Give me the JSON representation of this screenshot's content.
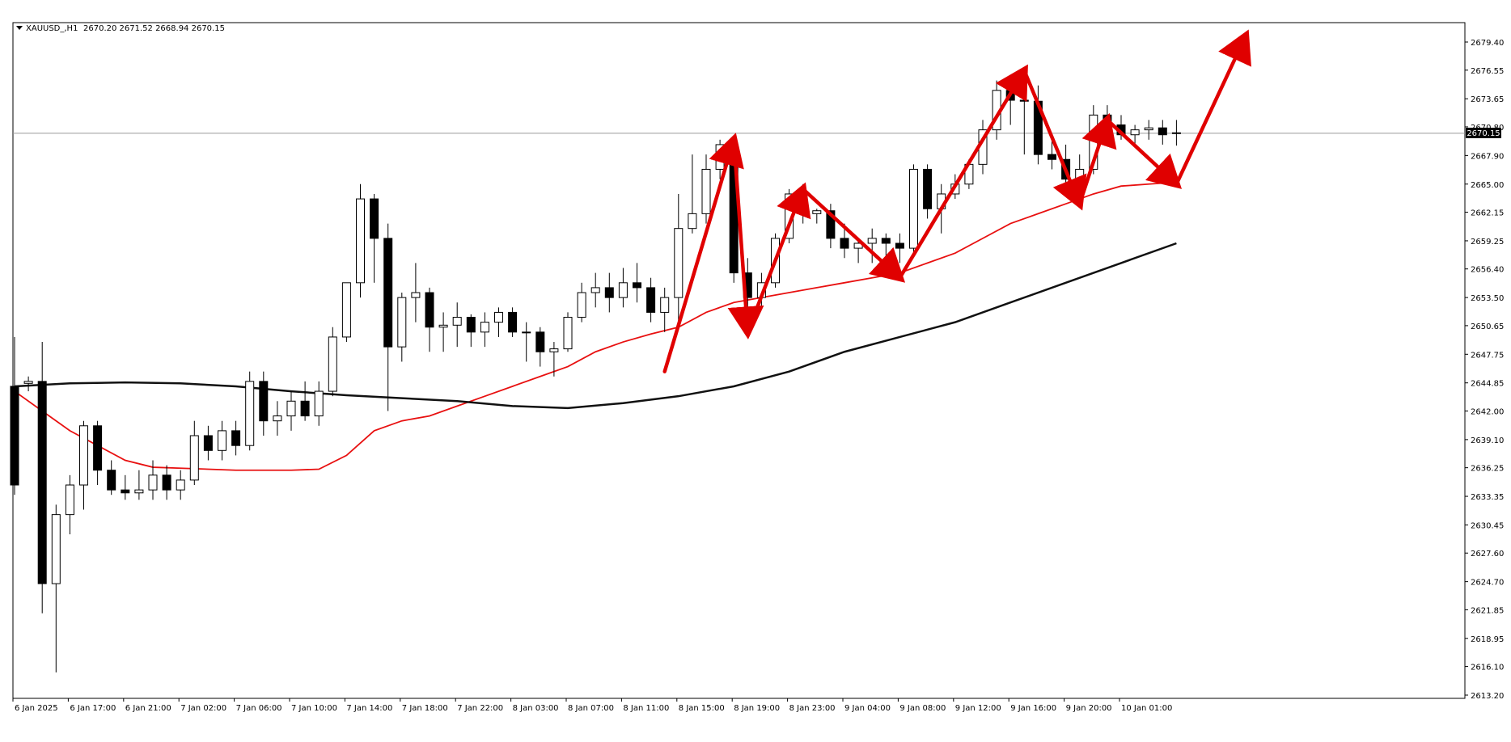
{
  "header": {
    "symbol": "XAUUSD_,H1",
    "ohlc": "2670.20 2671.52 2668.94 2670.15",
    "dropdown_icon": "triangle-down-icon"
  },
  "price_label": "2670.15",
  "chart_data": {
    "type": "candlestick",
    "ylim": [
      2613.2,
      2682.0
    ],
    "y_ticks": [
      "2679.40",
      "2676.55",
      "2673.65",
      "2670.80",
      "2667.90",
      "2665.00",
      "2662.15",
      "2659.25",
      "2656.40",
      "2653.50",
      "2650.65",
      "2647.75",
      "2644.85",
      "2642.00",
      "2639.10",
      "2636.25",
      "2633.35",
      "2630.45",
      "2627.60",
      "2624.70",
      "2621.85",
      "2618.95",
      "2616.10",
      "2613.20"
    ],
    "x_labels": [
      "6 Jan 2025",
      "6 Jan 17:00",
      "6 Jan 21:00",
      "7 Jan 02:00",
      "7 Jan 06:00",
      "7 Jan 10:00",
      "7 Jan 14:00",
      "7 Jan 18:00",
      "7 Jan 22:00",
      "8 Jan 03:00",
      "8 Jan 07:00",
      "8 Jan 11:00",
      "8 Jan 15:00",
      "8 Jan 19:00",
      "8 Jan 23:00",
      "9 Jan 04:00",
      "9 Jan 08:00",
      "9 Jan 12:00",
      "9 Jan 16:00",
      "9 Jan 20:00",
      "10 Jan 01:00"
    ],
    "current_price": 2670.15,
    "candles": [
      [
        2644.5,
        2649.5,
        2633.5,
        2634.5
      ],
      [
        2644.8,
        2645.5,
        2644.0,
        2645.0
      ],
      [
        2645.0,
        2649.0,
        2621.5,
        2624.5
      ],
      [
        2624.5,
        2632.5,
        2615.5,
        2631.5
      ],
      [
        2631.5,
        2635.5,
        2629.5,
        2634.5
      ],
      [
        2634.5,
        2641.0,
        2632.0,
        2640.5
      ],
      [
        2640.5,
        2641.0,
        2634.5,
        2636.0
      ],
      [
        2636.0,
        2637.0,
        2633.5,
        2634.0
      ],
      [
        2634.0,
        2635.5,
        2633.0,
        2633.7
      ],
      [
        2633.7,
        2636.0,
        2633.0,
        2634.0
      ],
      [
        2634.0,
        2637.0,
        2633.0,
        2635.5
      ],
      [
        2635.5,
        2636.5,
        2633.0,
        2634.0
      ],
      [
        2634.0,
        2636.0,
        2633.0,
        2635.0
      ],
      [
        2635.0,
        2641.0,
        2634.5,
        2639.5
      ],
      [
        2639.5,
        2640.5,
        2637.0,
        2638.0
      ],
      [
        2638.0,
        2641.0,
        2637.0,
        2640.0
      ],
      [
        2640.0,
        2641.0,
        2637.5,
        2638.5
      ],
      [
        2638.5,
        2646.0,
        2638.0,
        2645.0
      ],
      [
        2645.0,
        2646.0,
        2639.5,
        2641.0
      ],
      [
        2641.0,
        2643.0,
        2639.5,
        2641.5
      ],
      [
        2641.5,
        2644.0,
        2640.0,
        2643.0
      ],
      [
        2643.0,
        2645.0,
        2641.0,
        2641.5
      ],
      [
        2641.5,
        2645.0,
        2640.5,
        2644.0
      ],
      [
        2644.0,
        2650.5,
        2643.5,
        2649.5
      ],
      [
        2649.5,
        2655.0,
        2649.0,
        2655.0
      ],
      [
        2655.0,
        2665.0,
        2653.5,
        2663.5
      ],
      [
        2663.5,
        2664.0,
        2655.0,
        2659.5
      ],
      [
        2659.5,
        2661.0,
        2642.0,
        2648.5
      ],
      [
        2648.5,
        2654.0,
        2647.0,
        2653.5
      ],
      [
        2653.5,
        2657.0,
        2651.0,
        2654.0
      ],
      [
        2654.0,
        2654.5,
        2648.0,
        2650.5
      ],
      [
        2650.5,
        2652.0,
        2648.0,
        2650.7
      ],
      [
        2650.7,
        2653.0,
        2648.5,
        2651.5
      ],
      [
        2651.5,
        2651.8,
        2648.5,
        2650.0
      ],
      [
        2650.0,
        2652.0,
        2648.5,
        2651.0
      ],
      [
        2651.0,
        2652.5,
        2649.5,
        2652.0
      ],
      [
        2652.0,
        2652.5,
        2649.5,
        2650.0
      ],
      [
        2650.0,
        2651.0,
        2647.0,
        2650.0
      ],
      [
        2650.0,
        2650.5,
        2646.5,
        2648.0
      ],
      [
        2648.0,
        2649.0,
        2645.5,
        2648.3
      ],
      [
        2648.3,
        2652.0,
        2648.0,
        2651.5
      ],
      [
        2651.5,
        2655.0,
        2651.0,
        2654.0
      ],
      [
        2654.0,
        2656.0,
        2652.5,
        2654.5
      ],
      [
        2654.5,
        2656.0,
        2652.0,
        2653.5
      ],
      [
        2653.5,
        2656.5,
        2652.5,
        2655.0
      ],
      [
        2655.0,
        2657.0,
        2653.0,
        2654.5
      ],
      [
        2654.5,
        2655.5,
        2651.0,
        2652.0
      ],
      [
        2652.0,
        2654.5,
        2650.0,
        2653.5
      ],
      [
        2653.5,
        2664.0,
        2650.5,
        2660.5
      ],
      [
        2660.5,
        2668.0,
        2660.0,
        2662.0
      ],
      [
        2662.0,
        2668.0,
        2661.0,
        2666.5
      ],
      [
        2666.5,
        2669.5,
        2665.5,
        2669.0
      ],
      [
        2669.0,
        2669.5,
        2655.0,
        2656.0
      ],
      [
        2656.0,
        2657.5,
        2651.0,
        2653.5
      ],
      [
        2653.5,
        2656.0,
        2652.5,
        2655.0
      ],
      [
        2655.0,
        2660.0,
        2654.5,
        2659.5
      ],
      [
        2659.5,
        2664.5,
        2659.0,
        2664.0
      ],
      [
        2664.0,
        2665.0,
        2661.0,
        2662.0
      ],
      [
        2662.0,
        2662.5,
        2661.0,
        2662.3
      ],
      [
        2662.3,
        2663.0,
        2658.5,
        2659.5
      ],
      [
        2659.5,
        2661.0,
        2657.5,
        2658.5
      ],
      [
        2658.5,
        2659.5,
        2657.0,
        2659.0
      ],
      [
        2659.0,
        2660.5,
        2657.0,
        2659.5
      ],
      [
        2659.5,
        2660.0,
        2657.5,
        2659.0
      ],
      [
        2659.0,
        2660.0,
        2657.0,
        2658.5
      ],
      [
        2658.5,
        2667.0,
        2658.0,
        2666.5
      ],
      [
        2666.5,
        2667.0,
        2661.5,
        2662.5
      ],
      [
        2662.5,
        2665.0,
        2660.0,
        2664.0
      ],
      [
        2664.0,
        2666.0,
        2663.5,
        2665.0
      ],
      [
        2665.0,
        2667.5,
        2664.5,
        2667.0
      ],
      [
        2667.0,
        2671.5,
        2666.0,
        2670.5
      ],
      [
        2670.5,
        2675.5,
        2669.5,
        2674.5
      ],
      [
        2674.5,
        2676.0,
        2671.0,
        2673.5
      ],
      [
        2673.5,
        2675.0,
        2668.0,
        2673.4
      ],
      [
        2673.4,
        2675.0,
        2667.0,
        2668.0
      ],
      [
        2668.0,
        2670.0,
        2666.5,
        2667.5
      ],
      [
        2667.5,
        2669.0,
        2665.0,
        2665.5
      ],
      [
        2665.5,
        2668.0,
        2664.5,
        2666.5
      ],
      [
        2666.5,
        2673.0,
        2666.0,
        2672.0
      ],
      [
        2672.0,
        2673.0,
        2670.0,
        2671.0
      ],
      [
        2671.0,
        2672.0,
        2669.5,
        2670.0
      ],
      [
        2670.0,
        2671.0,
        2669.0,
        2670.5
      ],
      [
        2670.5,
        2671.5,
        2669.5,
        2670.7
      ],
      [
        2670.7,
        2671.5,
        2669.0,
        2670.0
      ],
      [
        2670.2,
        2671.5,
        2668.9,
        2670.15
      ]
    ],
    "series": [
      {
        "name": "",
        "color": "#e81010",
        "points": [
          [
            0,
            2644.0
          ],
          [
            2,
            2642.0
          ],
          [
            4,
            2640.0
          ],
          [
            6,
            2638.5
          ],
          [
            8,
            2637.0
          ],
          [
            10,
            2636.3
          ],
          [
            12,
            2636.2
          ],
          [
            14,
            2636.1
          ],
          [
            16,
            2636.0
          ],
          [
            18,
            2636.0
          ],
          [
            20,
            2636.0
          ],
          [
            22,
            2636.1
          ],
          [
            24,
            2637.5
          ],
          [
            26,
            2640.0
          ],
          [
            28,
            2641.0
          ],
          [
            30,
            2641.5
          ],
          [
            32,
            2642.5
          ],
          [
            34,
            2643.5
          ],
          [
            36,
            2644.5
          ],
          [
            38,
            2645.5
          ],
          [
            40,
            2646.5
          ],
          [
            42,
            2648.0
          ],
          [
            44,
            2649.0
          ],
          [
            46,
            2649.8
          ],
          [
            48,
            2650.5
          ],
          [
            50,
            2652.0
          ],
          [
            52,
            2653.0
          ],
          [
            54,
            2653.5
          ],
          [
            56,
            2654.0
          ],
          [
            58,
            2654.5
          ],
          [
            60,
            2655.0
          ],
          [
            62,
            2655.5
          ],
          [
            64,
            2656.0
          ],
          [
            66,
            2657.0
          ],
          [
            68,
            2658.0
          ],
          [
            70,
            2659.5
          ],
          [
            72,
            2661.0
          ],
          [
            74,
            2662.0
          ],
          [
            76,
            2663.0
          ],
          [
            78,
            2664.0
          ],
          [
            80,
            2664.8
          ],
          [
            82,
            2665.0
          ],
          [
            84,
            2665.2
          ]
        ]
      },
      {
        "name": "",
        "color": "#111111",
        "points": [
          [
            0,
            2644.5
          ],
          [
            4,
            2644.8
          ],
          [
            8,
            2644.9
          ],
          [
            12,
            2644.8
          ],
          [
            16,
            2644.5
          ],
          [
            20,
            2644.0
          ],
          [
            24,
            2643.6
          ],
          [
            28,
            2643.3
          ],
          [
            32,
            2643.0
          ],
          [
            36,
            2642.5
          ],
          [
            40,
            2642.3
          ],
          [
            44,
            2642.8
          ],
          [
            48,
            2643.5
          ],
          [
            52,
            2644.5
          ],
          [
            56,
            2646.0
          ],
          [
            60,
            2648.0
          ],
          [
            64,
            2649.5
          ],
          [
            68,
            2651.0
          ],
          [
            72,
            2653.0
          ],
          [
            76,
            2655.0
          ],
          [
            80,
            2657.0
          ],
          [
            84,
            2659.0
          ]
        ]
      }
    ],
    "annotations": [
      {
        "kind": "polyline",
        "color": "#e00000",
        "points": [
          [
            47,
            2646.0
          ],
          [
            52,
            2669.5
          ]
        ]
      },
      {
        "kind": "polyline",
        "color": "#e00000",
        "points": [
          [
            52,
            2669.5
          ],
          [
            53,
            2650.0
          ]
        ]
      },
      {
        "kind": "polyline",
        "color": "#e00000",
        "points": [
          [
            53,
            2650.0
          ],
          [
            57,
            2664.5
          ]
        ]
      },
      {
        "kind": "polyline",
        "color": "#e00000",
        "points": [
          [
            57,
            2664.5
          ],
          [
            64,
            2655.5
          ]
        ]
      },
      {
        "kind": "polyline",
        "color": "#e00000",
        "points": [
          [
            64,
            2655.5
          ],
          [
            73,
            2676.5
          ]
        ]
      },
      {
        "kind": "polyline",
        "color": "#e00000",
        "points": [
          [
            73,
            2676.5
          ],
          [
            77,
            2663.0
          ]
        ]
      },
      {
        "kind": "polyline",
        "color": "#e00000",
        "points": [
          [
            77,
            2663.0
          ],
          [
            79,
            2671.5
          ]
        ]
      },
      {
        "kind": "polyline",
        "color": "#e00000",
        "points": [
          [
            79,
            2671.5
          ],
          [
            84,
            2665.0
          ]
        ]
      },
      {
        "kind": "polyline",
        "color": "#e00000",
        "points": [
          [
            84,
            2665.0
          ],
          [
            89,
            2680.0
          ]
        ]
      }
    ]
  }
}
